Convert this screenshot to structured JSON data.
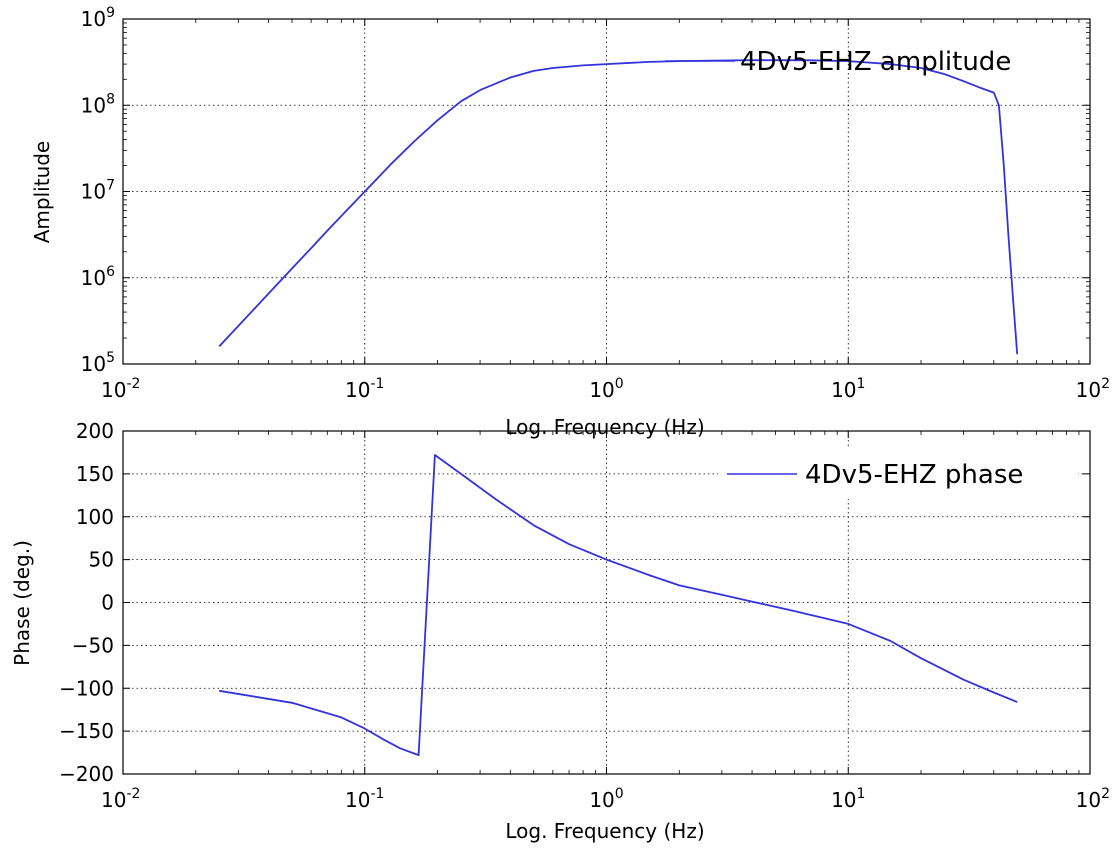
{
  "chart_data": [
    {
      "type": "line",
      "xscale": "log",
      "yscale": "log",
      "xlim": [
        0.01,
        100
      ],
      "ylim": [
        100000,
        1000000000
      ],
      "xlabel": "Log. Frequency (Hz)",
      "ylabel": "Amplitude",
      "grid": true,
      "legend_position": "top-right",
      "x_ticks": [
        {
          "value": 0.01,
          "base": "10",
          "exp": "-2"
        },
        {
          "value": 0.1,
          "base": "10",
          "exp": "-1"
        },
        {
          "value": 1,
          "base": "10",
          "exp": "0"
        },
        {
          "value": 10,
          "base": "10",
          "exp": "1"
        },
        {
          "value": 100,
          "base": "10",
          "exp": "2"
        }
      ],
      "y_ticks": [
        {
          "value": 100000,
          "base": "10",
          "exp": "5"
        },
        {
          "value": 1000000,
          "base": "10",
          "exp": "6"
        },
        {
          "value": 10000000,
          "base": "10",
          "exp": "7"
        },
        {
          "value": 100000000,
          "base": "10",
          "exp": "8"
        },
        {
          "value": 1000000000,
          "base": "10",
          "exp": "9"
        }
      ],
      "series": [
        {
          "name": "4Dv5-EHZ amplitude",
          "color": "#3333dd",
          "x": [
            0.025,
            0.03,
            0.04,
            0.05,
            0.06,
            0.07,
            0.08,
            0.1,
            0.13,
            0.16,
            0.2,
            0.25,
            0.3,
            0.4,
            0.5,
            0.6,
            0.8,
            1,
            1.5,
            2,
            3,
            4,
            5,
            7,
            10,
            15,
            20,
            25,
            30,
            35,
            40,
            42,
            44,
            46,
            48,
            50
          ],
          "y": [
            160000,
            276000,
            655000,
            1280000,
            2200000,
            3500000,
            5200000,
            10000000,
            21500000,
            38000000,
            67000000,
            111000000,
            150000000,
            210000000,
            250000000,
            270000000,
            290000000,
            300000000,
            318000000,
            325000000,
            330000000,
            333000000,
            333000000,
            332000000,
            325000000,
            300000000,
            270000000,
            230000000,
            190000000,
            160000000,
            140000000,
            100000000,
            20000000,
            3000000,
            600000,
            130000
          ]
        }
      ]
    },
    {
      "type": "line",
      "xscale": "log",
      "yscale": "linear",
      "xlim": [
        0.01,
        100
      ],
      "ylim": [
        -200,
        200
      ],
      "xlabel": "Log. Frequency (Hz)",
      "ylabel": "Phase (deg.)",
      "grid": true,
      "legend_position": "top-right",
      "x_ticks": [
        {
          "value": 0.01,
          "base": "10",
          "exp": "-2"
        },
        {
          "value": 0.1,
          "base": "10",
          "exp": "-1"
        },
        {
          "value": 1,
          "base": "10",
          "exp": "0"
        },
        {
          "value": 10,
          "base": "10",
          "exp": "1"
        },
        {
          "value": 100,
          "base": "10",
          "exp": "2"
        }
      ],
      "y_ticks": [
        {
          "value": 200,
          "label": "200"
        },
        {
          "value": 150,
          "label": "150"
        },
        {
          "value": 100,
          "label": "100"
        },
        {
          "value": 50,
          "label": "50"
        },
        {
          "value": 0,
          "label": "0"
        },
        {
          "value": -50,
          "label": "−50"
        },
        {
          "value": -100,
          "label": "−100"
        },
        {
          "value": -150,
          "label": "−150"
        },
        {
          "value": -200,
          "label": "−200"
        }
      ],
      "series": [
        {
          "name": "4Dv5-EHZ phase",
          "color": "#3333dd",
          "x": [
            0.025,
            0.05,
            0.08,
            0.1,
            0.12,
            0.14,
            0.167,
            0.195,
            0.25,
            0.35,
            0.5,
            0.7,
            1,
            1.5,
            2,
            3,
            4,
            6,
            10,
            15,
            20,
            30,
            40,
            50
          ],
          "y": [
            -103,
            -117,
            -134,
            -147,
            -160,
            -170,
            -178,
            172,
            150,
            120,
            90,
            68,
            50,
            32,
            20,
            9,
            1,
            -10,
            -25,
            -45,
            -65,
            -90,
            -105,
            -116
          ]
        }
      ]
    }
  ]
}
